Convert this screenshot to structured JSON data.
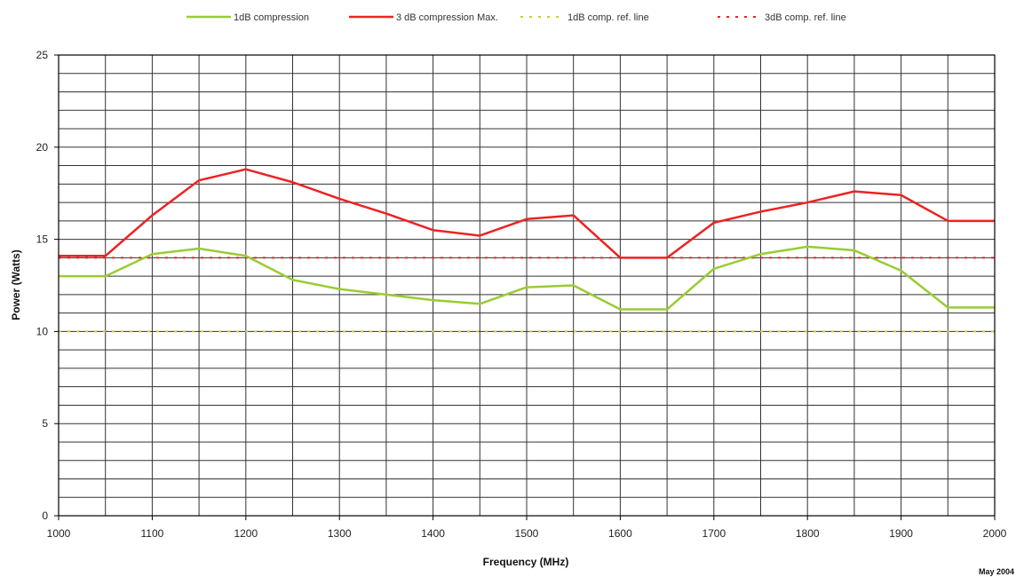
{
  "chart_data": {
    "type": "line",
    "title": "",
    "xlabel": "Frequency  (MHz)",
    "ylabel": "Power (Watts)",
    "xlim": [
      1000,
      2000
    ],
    "ylim": [
      0,
      25
    ],
    "x_ticks": [
      1000,
      1100,
      1200,
      1300,
      1400,
      1500,
      1600,
      1700,
      1800,
      1900,
      2000
    ],
    "y_ticks": [
      0,
      5,
      10,
      15,
      20,
      25
    ],
    "x_grid_step": 50,
    "y_grid_step": 1,
    "grid": true,
    "legend_position": "top",
    "footnote": "May 2004",
    "series": [
      {
        "name": "1dB compression",
        "style": "solid",
        "color": "#99cc33",
        "x": [
          1000,
          1050,
          1100,
          1150,
          1200,
          1250,
          1300,
          1350,
          1400,
          1450,
          1500,
          1550,
          1600,
          1650,
          1700,
          1750,
          1800,
          1850,
          1900,
          1950,
          2000
        ],
        "y": [
          13.0,
          13.0,
          14.2,
          14.5,
          14.1,
          12.8,
          12.3,
          12.0,
          11.7,
          11.5,
          12.4,
          12.5,
          11.2,
          11.2,
          13.4,
          14.2,
          14.6,
          14.4,
          13.3,
          11.3,
          11.3
        ]
      },
      {
        "name": "3 dB compression Max.",
        "style": "solid",
        "color": "#ee2222",
        "x": [
          1000,
          1050,
          1100,
          1150,
          1200,
          1250,
          1300,
          1350,
          1400,
          1450,
          1500,
          1550,
          1600,
          1650,
          1700,
          1750,
          1800,
          1850,
          1900,
          1950,
          2000
        ],
        "y": [
          14.1,
          14.1,
          16.3,
          18.2,
          18.8,
          18.1,
          17.2,
          16.4,
          15.5,
          15.2,
          16.1,
          16.3,
          14.0,
          14.0,
          15.9,
          16.5,
          17.0,
          17.6,
          17.4,
          16.0,
          16.0
        ]
      },
      {
        "name": "1dB comp. ref. line",
        "style": "dotted",
        "color": "#cccc33",
        "x": [
          1000,
          2000
        ],
        "y": [
          10,
          10
        ]
      },
      {
        "name": "3dB comp. ref. line",
        "style": "dotted",
        "color": "#ee2222",
        "x": [
          1000,
          2000
        ],
        "y": [
          14,
          14
        ]
      }
    ]
  }
}
